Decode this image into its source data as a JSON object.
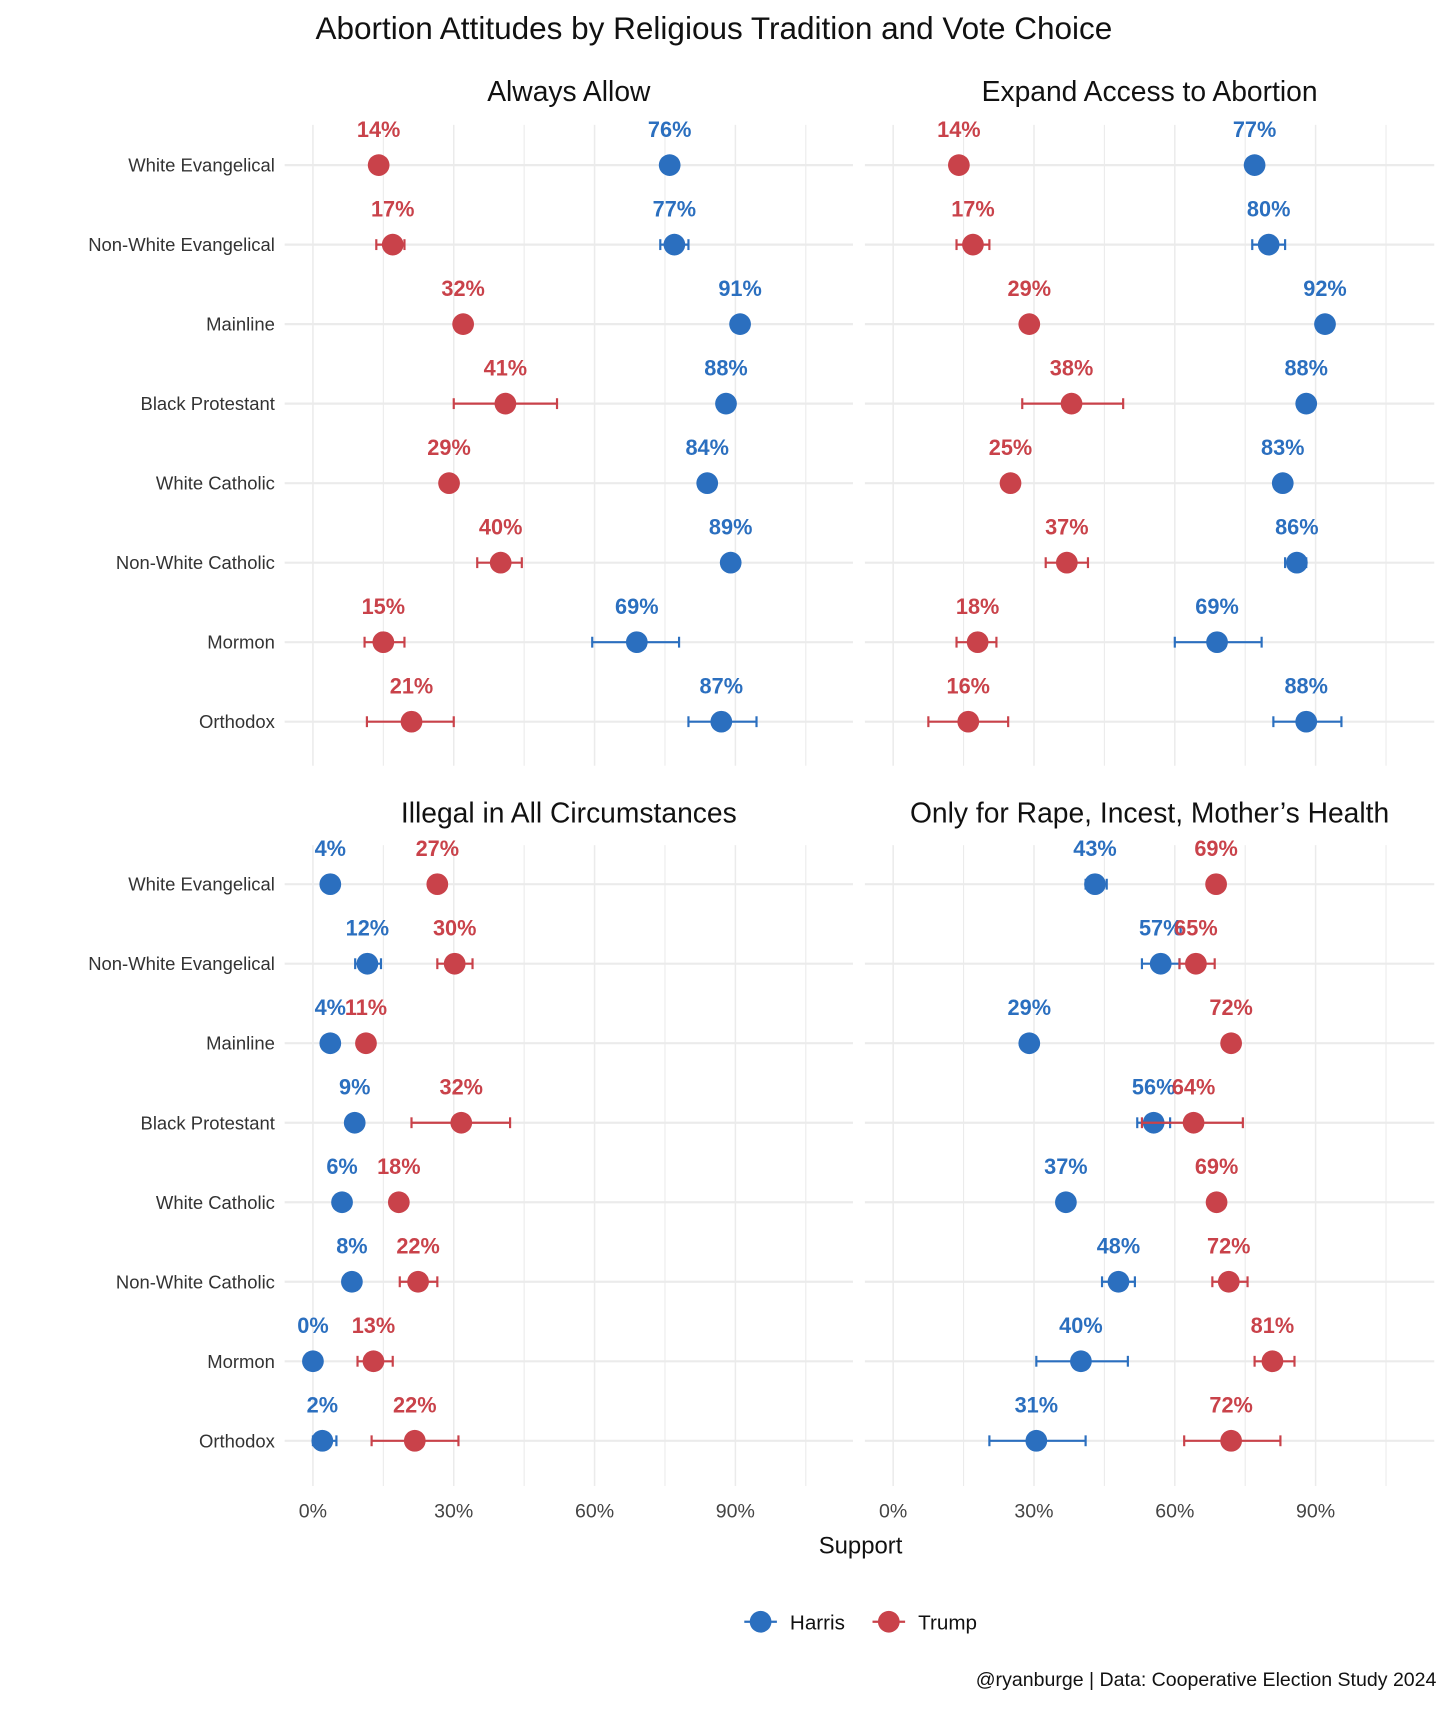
{
  "title": "Abortion Attitudes by Religious Tradition and Vote Choice",
  "xlabel": "Support",
  "caption": "@ryanburge | Data: Cooperative Election Study 2024",
  "legend": {
    "position": "bottom",
    "items": [
      "Harris",
      "Trump"
    ]
  },
  "colors": {
    "Harris": "#2b6fbf",
    "Trump": "#c9424a",
    "grid": "#e8e8e8"
  },
  "chart_data": [
    {
      "type": "scatter",
      "title": "Always Allow",
      "categories": [
        "White Evangelical",
        "Non-White Evangelical",
        "Mainline",
        "Black Protestant",
        "White Catholic",
        "Non-White Catholic",
        "Mormon",
        "Orthodox"
      ],
      "xlim": [
        -6,
        115
      ],
      "xticks": [
        "0%",
        "30%",
        "60%",
        "90%"
      ],
      "series": [
        {
          "name": "Harris",
          "labels": [
            "76%",
            "77%",
            "91%",
            "88%",
            "84%",
            "89%",
            "69%",
            "87%"
          ],
          "values": [
            76,
            77,
            91,
            88,
            84,
            89,
            69,
            87
          ],
          "ci_low": [
            74.5,
            74,
            90.5,
            87,
            83.5,
            87.5,
            59.5,
            80
          ],
          "ci_high": [
            77.5,
            80,
            91.5,
            89,
            84.5,
            90.5,
            78,
            94.5
          ]
        },
        {
          "name": "Trump",
          "labels": [
            "14%",
            "17%",
            "32%",
            "41%",
            "29%",
            "40%",
            "15%",
            "21%"
          ],
          "values": [
            14,
            17,
            32,
            41,
            29,
            40,
            15,
            21
          ],
          "ci_low": [
            13.5,
            13.5,
            31.5,
            30,
            28.5,
            35,
            11,
            11.5
          ],
          "ci_high": [
            14.5,
            19.5,
            32.5,
            52,
            29.5,
            44.5,
            19.5,
            30
          ]
        }
      ]
    },
    {
      "type": "scatter",
      "title": "Expand Access to Abortion",
      "categories": [
        "White Evangelical",
        "Non-White Evangelical",
        "Mainline",
        "Black Protestant",
        "White Catholic",
        "Non-White Catholic",
        "Mormon",
        "Orthodox"
      ],
      "xlim": [
        -6,
        115
      ],
      "xticks": [
        "0%",
        "30%",
        "60%",
        "90%"
      ],
      "series": [
        {
          "name": "Harris",
          "labels": [
            "77%",
            "80%",
            "92%",
            "88%",
            "83%",
            "86%",
            "69%",
            "88%"
          ],
          "values": [
            77,
            80,
            92,
            88,
            83,
            86,
            69,
            88
          ],
          "ci_low": [
            75.5,
            76.5,
            91.5,
            87.5,
            82.5,
            83.5,
            60,
            81
          ],
          "ci_high": [
            78.5,
            83.5,
            92.5,
            88.5,
            83.5,
            88,
            78.5,
            95.5
          ]
        },
        {
          "name": "Trump",
          "labels": [
            "14%",
            "17%",
            "29%",
            "38%",
            "25%",
            "37%",
            "18%",
            "16%"
          ],
          "values": [
            14,
            17,
            29,
            38,
            25,
            37,
            18,
            16
          ],
          "ci_low": [
            13.5,
            13.5,
            28.5,
            27.5,
            24.5,
            32.5,
            13.5,
            7.5
          ],
          "ci_high": [
            14.5,
            20.5,
            29.5,
            49,
            25.5,
            41.5,
            22,
            24.5
          ]
        }
      ]
    },
    {
      "type": "scatter",
      "title": "Illegal in All Circumstances",
      "categories": [
        "White Evangelical",
        "Non-White Evangelical",
        "Mainline",
        "Black Protestant",
        "White Catholic",
        "Non-White Catholic",
        "Mormon",
        "Orthodox"
      ],
      "xlim": [
        -6,
        115
      ],
      "xticks": [
        "0%",
        "30%",
        "60%",
        "90%"
      ],
      "series": [
        {
          "name": "Harris",
          "labels": [
            "4%",
            "12%",
            "4%",
            "9%",
            "6%",
            "8%",
            "0%",
            "2%"
          ],
          "values": [
            3.7,
            11.6,
            3.7,
            8.9,
            6.2,
            8.3,
            0,
            2
          ],
          "ci_low": [
            3.3,
            9,
            3.3,
            8.4,
            5.8,
            7.8,
            0,
            0
          ],
          "ci_high": [
            4.1,
            14.5,
            4.1,
            9.4,
            6.6,
            8.8,
            0,
            5
          ]
        },
        {
          "name": "Trump",
          "labels": [
            "27%",
            "30%",
            "11%",
            "32%",
            "18%",
            "22%",
            "13%",
            "22%"
          ],
          "values": [
            26.5,
            30.2,
            11.3,
            31.6,
            18.3,
            22.4,
            12.9,
            21.7
          ],
          "ci_low": [
            26,
            26.5,
            10.8,
            21,
            17.8,
            18.5,
            9.5,
            12.5
          ],
          "ci_high": [
            27,
            34,
            11.8,
            42,
            18.8,
            26.5,
            17,
            31
          ]
        }
      ]
    },
    {
      "type": "scatter",
      "title": "Only for Rape, Incest, Mother’s Health",
      "categories": [
        "White Evangelical",
        "Non-White Evangelical",
        "Mainline",
        "Black Protestant",
        "White Catholic",
        "Non-White Catholic",
        "Mormon",
        "Orthodox"
      ],
      "xlim": [
        -6,
        115
      ],
      "xticks": [
        "0%",
        "30%",
        "60%",
        "90%"
      ],
      "series": [
        {
          "name": "Harris",
          "labels": [
            "43%",
            "57%",
            "29%",
            "56%",
            "37%",
            "48%",
            "40%",
            "31%"
          ],
          "values": [
            43,
            57,
            29,
            55.5,
            36.8,
            48,
            40,
            30.5
          ],
          "ci_low": [
            41,
            53,
            28.5,
            52,
            36.3,
            44.5,
            30.5,
            20.5
          ],
          "ci_high": [
            45.5,
            61,
            29.5,
            59,
            37.3,
            51.5,
            50,
            41
          ]
        },
        {
          "name": "Trump",
          "labels": [
            "69%",
            "65%",
            "72%",
            "64%",
            "69%",
            "72%",
            "81%",
            "72%"
          ],
          "values": [
            68.8,
            64.5,
            72,
            64,
            68.9,
            71.5,
            80.8,
            72
          ],
          "ci_low": [
            68.3,
            61,
            71.5,
            53,
            68.4,
            68,
            77,
            62
          ],
          "ci_high": [
            69.3,
            68.5,
            72.5,
            74.5,
            69.4,
            75.5,
            85.5,
            82.5
          ]
        }
      ]
    }
  ]
}
